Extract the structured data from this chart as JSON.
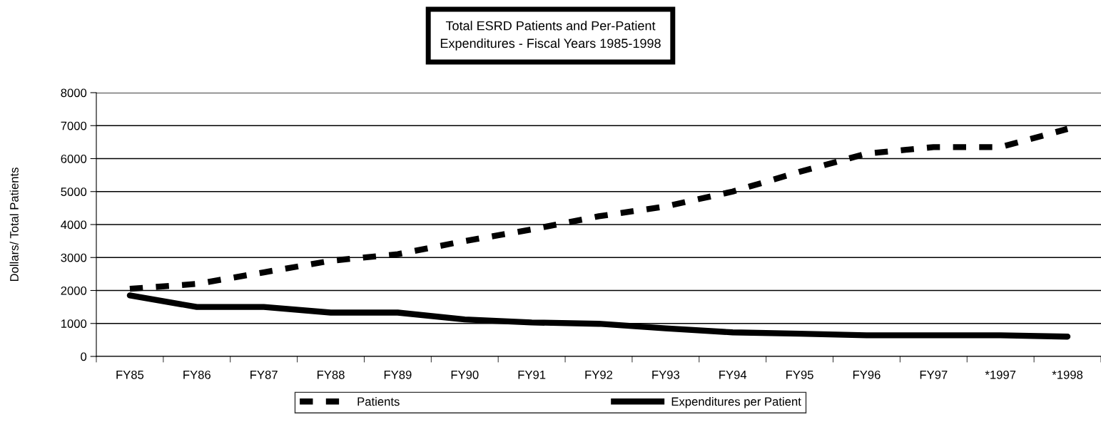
{
  "chart_data": {
    "type": "line",
    "title": "Total ESRD Patients and Per-Patient\nExpenditures - Fiscal Years 1985-1998",
    "ylabel": "Dollars/ Total Patients",
    "categories": [
      "FY85",
      "FY86",
      "FY87",
      "FY88",
      "FY89",
      "FY90",
      "FY91",
      "FY92",
      "FY93",
      "FY94",
      "FY95",
      "FY96",
      "FY97",
      "*1997",
      "*1998"
    ],
    "series": [
      {
        "name": "Patients",
        "color": "#000000",
        "line_style": "dashed",
        "values": [
          2050,
          2200,
          2550,
          2900,
          3100,
          3500,
          3850,
          4250,
          4550,
          5000,
          5600,
          6150,
          6350,
          6350,
          6900
        ]
      },
      {
        "name": "Expenditures per Patient",
        "color": "#000000",
        "line_style": "solid",
        "values": [
          1850,
          1500,
          1500,
          1330,
          1330,
          1120,
          1030,
          990,
          850,
          730,
          690,
          640,
          640,
          640,
          600
        ]
      }
    ],
    "ylim": [
      0,
      8000
    ],
    "yticks": [
      0,
      1000,
      2000,
      3000,
      4000,
      5000,
      6000,
      7000,
      8000
    ],
    "grid": "y",
    "legend": "bottom"
  }
}
